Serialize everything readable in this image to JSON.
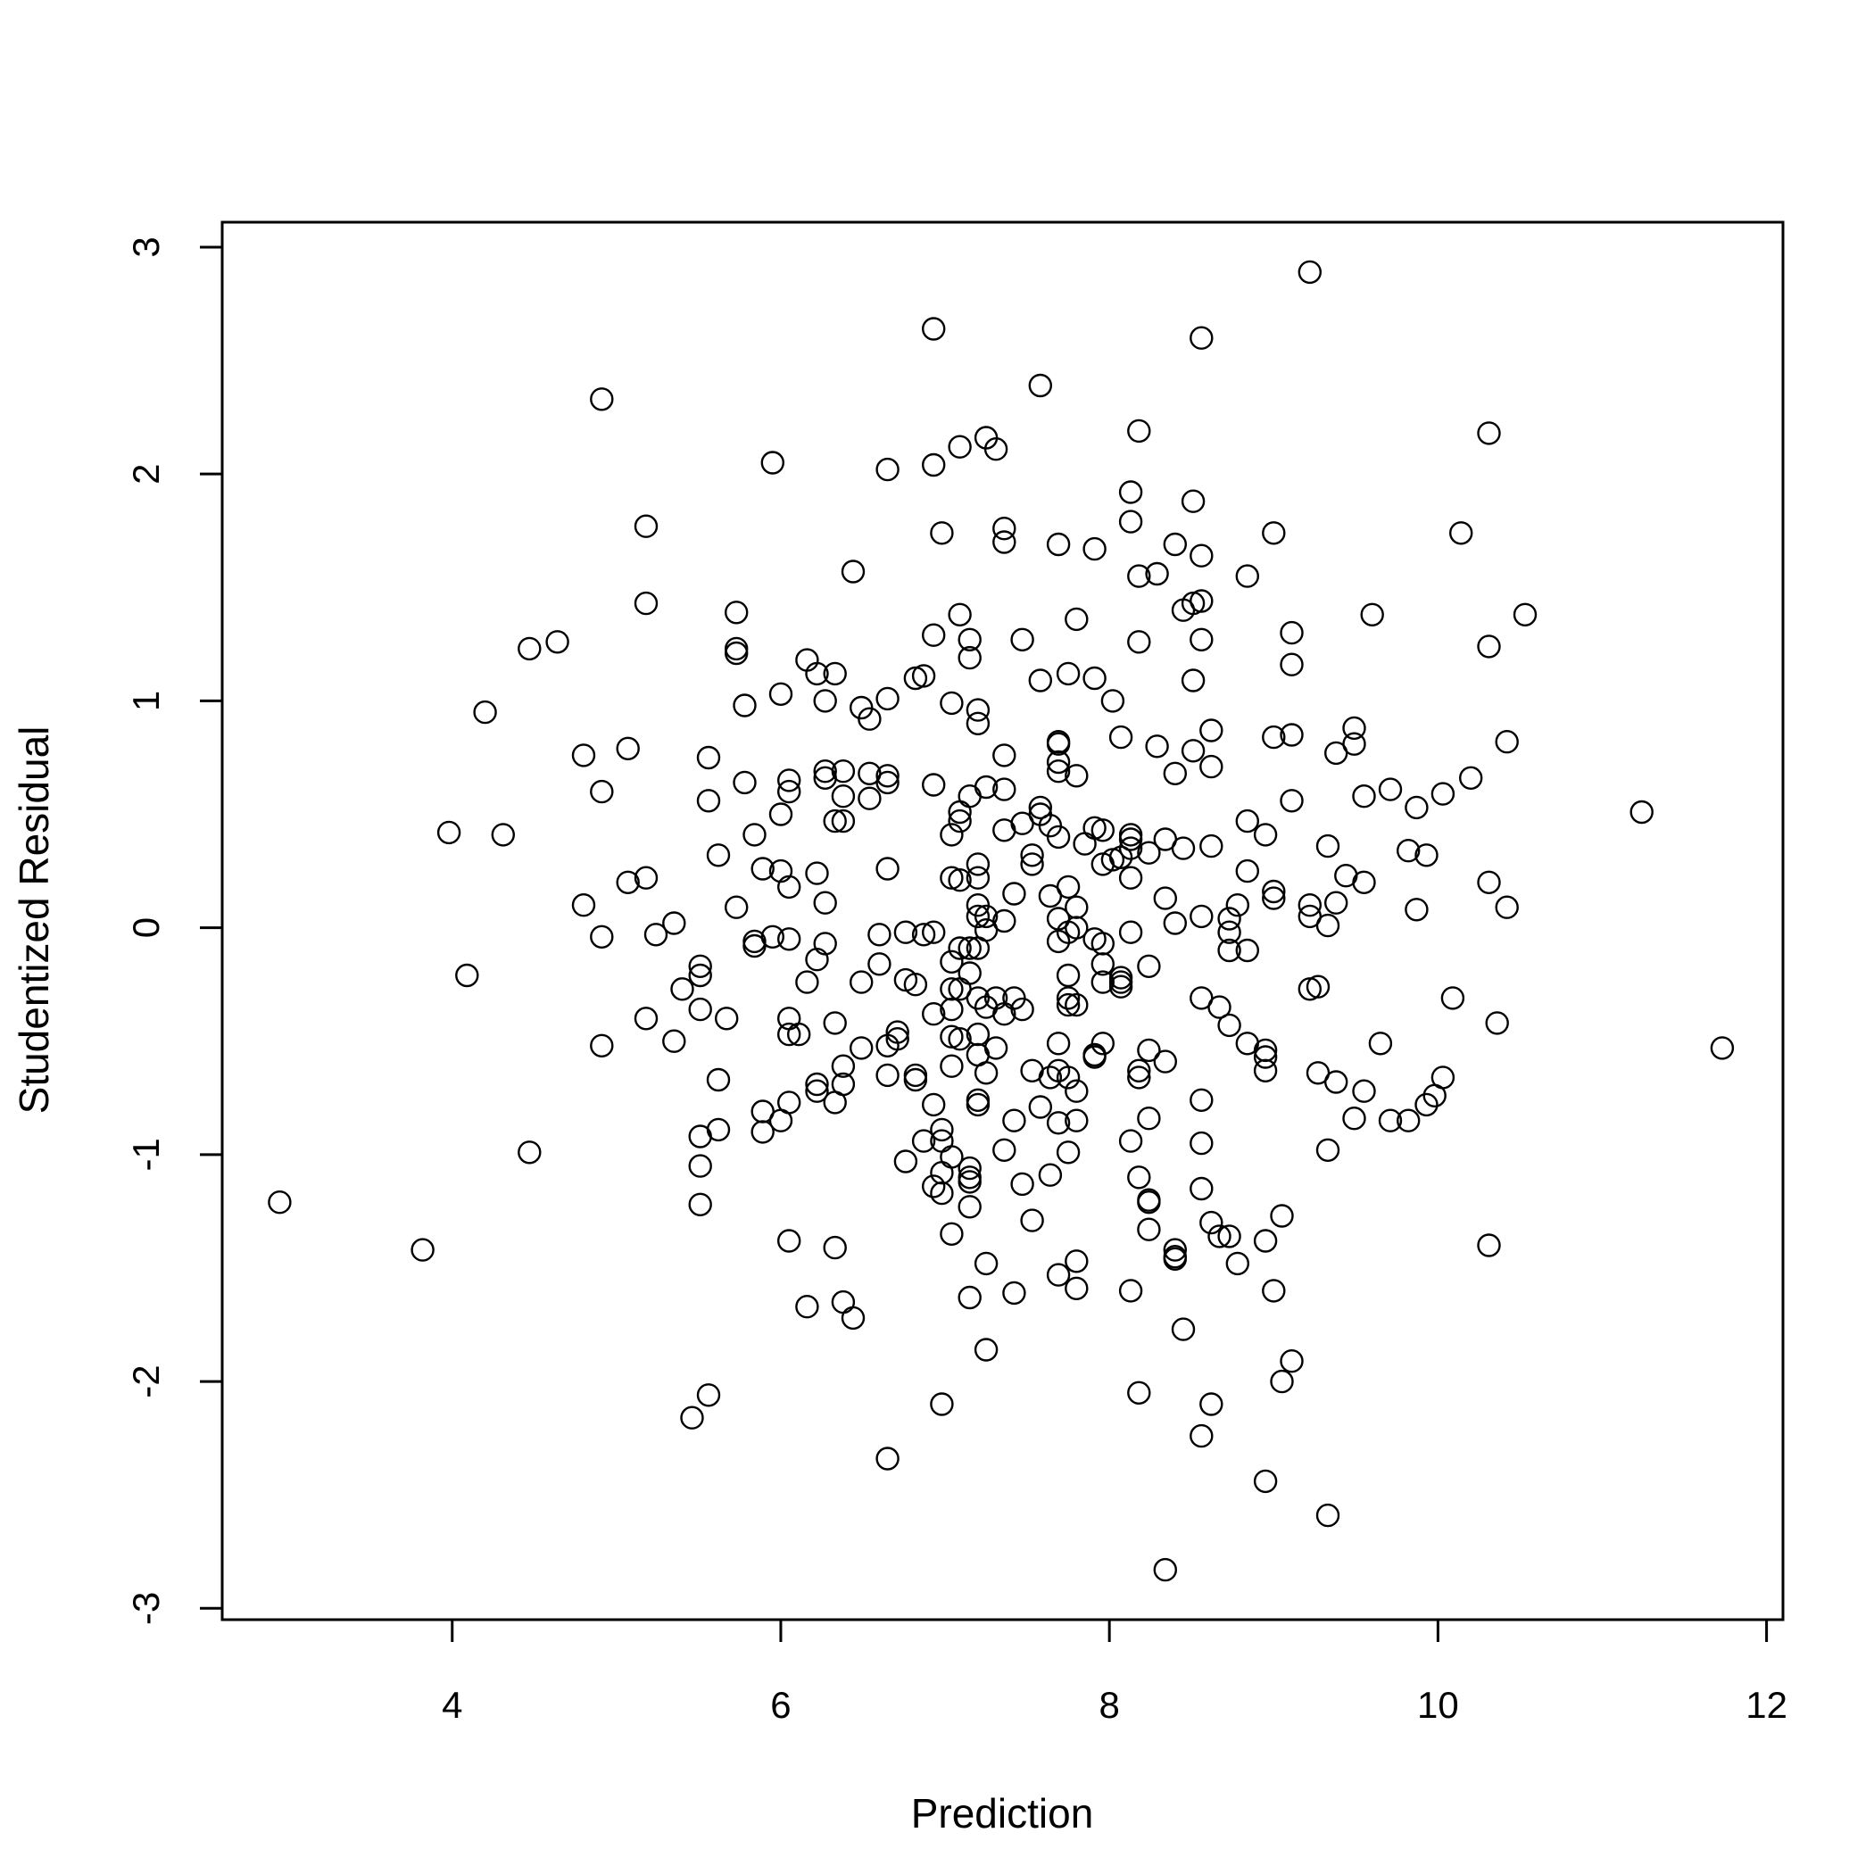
{
  "chart_data": {
    "type": "scatter",
    "title": "",
    "xlabel": "Prediction",
    "ylabel": "Studentized Residual",
    "xlim": [
      2.6,
      12.1
    ],
    "ylim": [
      -3.05,
      3.11
    ],
    "x_ticks": [
      4,
      6,
      8,
      10,
      12
    ],
    "y_ticks": [
      -3,
      -2,
      -1,
      0,
      1,
      2,
      3
    ],
    "grid": false,
    "legend": "none",
    "marker": "open-circle",
    "color": "#000000",
    "points": [
      [
        2.95,
        -1.21
      ],
      [
        3.82,
        -1.42
      ],
      [
        3.98,
        0.42
      ],
      [
        4.09,
        -0.21
      ],
      [
        4.2,
        0.95
      ],
      [
        4.31,
        0.41
      ],
      [
        4.47,
        1.23
      ],
      [
        4.47,
        -0.99
      ],
      [
        4.64,
        1.26
      ],
      [
        4.8,
        0.76
      ],
      [
        4.8,
        0.1
      ],
      [
        4.91,
        2.33
      ],
      [
        4.91,
        0.6
      ],
      [
        4.91,
        -0.04
      ],
      [
        4.91,
        -0.52
      ],
      [
        5.07,
        0.79
      ],
      [
        5.07,
        0.2
      ],
      [
        5.18,
        1.77
      ],
      [
        5.18,
        1.43
      ],
      [
        5.18,
        0.22
      ],
      [
        5.18,
        -0.4
      ],
      [
        5.24,
        -0.03
      ],
      [
        5.35,
        0.02
      ],
      [
        5.35,
        -0.5
      ],
      [
        5.4,
        -0.27
      ],
      [
        5.46,
        -2.16
      ],
      [
        5.51,
        -0.17
      ],
      [
        5.51,
        -0.21
      ],
      [
        5.51,
        -0.36
      ],
      [
        5.51,
        -0.92
      ],
      [
        5.51,
        -1.05
      ],
      [
        5.51,
        -1.22
      ],
      [
        5.56,
        0.75
      ],
      [
        5.56,
        0.56
      ],
      [
        5.56,
        -2.06
      ],
      [
        5.62,
        0.32
      ],
      [
        5.62,
        -0.67
      ],
      [
        5.62,
        -0.89
      ],
      [
        5.67,
        -0.4
      ],
      [
        5.73,
        1.39
      ],
      [
        5.73,
        1.23
      ],
      [
        5.73,
        1.21
      ],
      [
        5.73,
        0.09
      ],
      [
        5.78,
        0.98
      ],
      [
        5.78,
        0.64
      ],
      [
        5.84,
        0.41
      ],
      [
        5.84,
        -0.06
      ],
      [
        5.84,
        -0.08
      ],
      [
        5.89,
        0.26
      ],
      [
        5.89,
        -0.81
      ],
      [
        5.89,
        -0.9
      ],
      [
        5.95,
        2.05
      ],
      [
        5.95,
        -0.04
      ],
      [
        6,
        1.03
      ],
      [
        6,
        0.5
      ],
      [
        6,
        0.25
      ],
      [
        6,
        -0.85
      ],
      [
        6.05,
        0.65
      ],
      [
        6.05,
        0.6
      ],
      [
        6.05,
        0.18
      ],
      [
        6.05,
        -0.05
      ],
      [
        6.05,
        -0.4
      ],
      [
        6.05,
        -0.47
      ],
      [
        6.05,
        -0.77
      ],
      [
        6.05,
        -1.38
      ],
      [
        6.11,
        -0.47
      ],
      [
        6.16,
        1.18
      ],
      [
        6.16,
        -0.24
      ],
      [
        6.16,
        -1.67
      ],
      [
        6.22,
        1.12
      ],
      [
        6.22,
        0.24
      ],
      [
        6.22,
        -0.14
      ],
      [
        6.22,
        -0.69
      ],
      [
        6.22,
        -0.72
      ],
      [
        6.27,
        1.0
      ],
      [
        6.27,
        0.69
      ],
      [
        6.27,
        0.66
      ],
      [
        6.27,
        0.11
      ],
      [
        6.27,
        -0.07
      ],
      [
        6.33,
        1.12
      ],
      [
        6.33,
        0.47
      ],
      [
        6.33,
        -0.42
      ],
      [
        6.33,
        -0.77
      ],
      [
        6.33,
        -1.41
      ],
      [
        6.38,
        0.69
      ],
      [
        6.38,
        0.58
      ],
      [
        6.38,
        0.47
      ],
      [
        6.38,
        -0.61
      ],
      [
        6.38,
        -0.69
      ],
      [
        6.38,
        -1.65
      ],
      [
        6.44,
        1.57
      ],
      [
        6.44,
        -1.72
      ],
      [
        6.49,
        0.97
      ],
      [
        6.49,
        -0.24
      ],
      [
        6.49,
        -0.53
      ],
      [
        6.54,
        0.92
      ],
      [
        6.54,
        0.68
      ],
      [
        6.54,
        0.57
      ],
      [
        6.6,
        -0.03
      ],
      [
        6.6,
        -0.16
      ],
      [
        6.65,
        2.02
      ],
      [
        6.65,
        1.01
      ],
      [
        6.65,
        0.67
      ],
      [
        6.65,
        0.64
      ],
      [
        6.65,
        0.26
      ],
      [
        6.65,
        -0.52
      ],
      [
        6.65,
        -0.65
      ],
      [
        6.65,
        -2.34
      ],
      [
        6.71,
        -0.46
      ],
      [
        6.71,
        -0.49
      ],
      [
        6.76,
        -0.02
      ],
      [
        6.76,
        -0.23
      ],
      [
        6.76,
        -1.03
      ],
      [
        6.82,
        1.1
      ],
      [
        6.82,
        -0.25
      ],
      [
        6.82,
        -0.65
      ],
      [
        6.82,
        -0.67
      ],
      [
        6.87,
        1.11
      ],
      [
        6.87,
        -0.03
      ],
      [
        6.87,
        -0.94
      ],
      [
        6.93,
        2.64
      ],
      [
        6.93,
        2.04
      ],
      [
        6.93,
        1.29
      ],
      [
        6.93,
        0.63
      ],
      [
        6.93,
        -0.02
      ],
      [
        6.93,
        -0.38
      ],
      [
        6.93,
        -0.78
      ],
      [
        6.93,
        -1.14
      ],
      [
        6.98,
        1.74
      ],
      [
        6.98,
        -0.89
      ],
      [
        6.98,
        -0.94
      ],
      [
        6.98,
        -1.08
      ],
      [
        6.98,
        -1.17
      ],
      [
        6.98,
        -2.1
      ],
      [
        7.04,
        0.99
      ],
      [
        7.04,
        0.41
      ],
      [
        7.04,
        0.22
      ],
      [
        7.04,
        -0.15
      ],
      [
        7.04,
        -0.27
      ],
      [
        7.04,
        -0.36
      ],
      [
        7.04,
        -0.48
      ],
      [
        7.04,
        -0.61
      ],
      [
        7.04,
        -1.01
      ],
      [
        7.04,
        -1.35
      ],
      [
        7.09,
        2.12
      ],
      [
        7.09,
        1.38
      ],
      [
        7.09,
        0.51
      ],
      [
        7.09,
        0.47
      ],
      [
        7.09,
        0.21
      ],
      [
        7.09,
        -0.09
      ],
      [
        7.09,
        -0.27
      ],
      [
        7.09,
        -0.49
      ],
      [
        7.15,
        1.27
      ],
      [
        7.15,
        1.19
      ],
      [
        7.15,
        0.58
      ],
      [
        7.15,
        -0.09
      ],
      [
        7.15,
        -0.2
      ],
      [
        7.15,
        -1.06
      ],
      [
        7.15,
        -1.1
      ],
      [
        7.15,
        -1.12
      ],
      [
        7.15,
        -1.23
      ],
      [
        7.15,
        -1.63
      ],
      [
        7.2,
        0.96
      ],
      [
        7.2,
        0.9
      ],
      [
        7.2,
        0.28
      ],
      [
        7.2,
        0.22
      ],
      [
        7.2,
        0.1
      ],
      [
        7.2,
        0.05
      ],
      [
        7.2,
        -0.09
      ],
      [
        7.2,
        -0.31
      ],
      [
        7.2,
        -0.47
      ],
      [
        7.2,
        -0.56
      ],
      [
        7.2,
        -0.76
      ],
      [
        7.2,
        -0.78
      ],
      [
        7.25,
        2.16
      ],
      [
        7.25,
        0.62
      ],
      [
        7.25,
        0.05
      ],
      [
        7.25,
        -0.01
      ],
      [
        7.25,
        -0.35
      ],
      [
        7.25,
        -0.64
      ],
      [
        7.25,
        -1.48
      ],
      [
        7.25,
        -1.86
      ],
      [
        7.31,
        2.11
      ],
      [
        7.31,
        -0.31
      ],
      [
        7.31,
        -0.53
      ],
      [
        7.36,
        1.76
      ],
      [
        7.36,
        1.7
      ],
      [
        7.36,
        0.76
      ],
      [
        7.36,
        0.61
      ],
      [
        7.36,
        0.43
      ],
      [
        7.36,
        0.03
      ],
      [
        7.36,
        -0.38
      ],
      [
        7.36,
        -0.98
      ],
      [
        7.42,
        0.15
      ],
      [
        7.42,
        -0.31
      ],
      [
        7.42,
        -0.85
      ],
      [
        7.42,
        -1.61
      ],
      [
        7.47,
        1.27
      ],
      [
        7.47,
        0.46
      ],
      [
        7.47,
        -0.36
      ],
      [
        7.47,
        -1.13
      ],
      [
        7.53,
        0.32
      ],
      [
        7.53,
        0.28
      ],
      [
        7.53,
        -0.63
      ],
      [
        7.53,
        -1.29
      ],
      [
        7.58,
        2.39
      ],
      [
        7.58,
        1.09
      ],
      [
        7.58,
        0.53
      ],
      [
        7.58,
        0.5
      ],
      [
        7.58,
        -0.79
      ],
      [
        7.64,
        0.45
      ],
      [
        7.64,
        0.14
      ],
      [
        7.64,
        -0.66
      ],
      [
        7.64,
        -1.09
      ],
      [
        7.69,
        1.69
      ],
      [
        7.69,
        0.82
      ],
      [
        7.69,
        0.81
      ],
      [
        7.69,
        0.73
      ],
      [
        7.69,
        0.69
      ],
      [
        7.69,
        0.4
      ],
      [
        7.69,
        0.04
      ],
      [
        7.69,
        -0.06
      ],
      [
        7.69,
        -0.51
      ],
      [
        7.69,
        -0.63
      ],
      [
        7.69,
        -0.86
      ],
      [
        7.69,
        -1.53
      ],
      [
        7.75,
        1.12
      ],
      [
        7.75,
        0.18
      ],
      [
        7.75,
        -0.02
      ],
      [
        7.75,
        -0.21
      ],
      [
        7.75,
        -0.31
      ],
      [
        7.75,
        -0.34
      ],
      [
        7.75,
        -0.66
      ],
      [
        7.75,
        -0.99
      ],
      [
        7.8,
        1.36
      ],
      [
        7.8,
        0.67
      ],
      [
        7.8,
        0.09
      ],
      [
        7.8,
        0.0
      ],
      [
        7.8,
        -0.34
      ],
      [
        7.8,
        -0.72
      ],
      [
        7.8,
        -0.85
      ],
      [
        7.8,
        -1.47
      ],
      [
        7.8,
        -1.59
      ],
      [
        7.85,
        0.37
      ],
      [
        7.91,
        1.67
      ],
      [
        7.91,
        1.1
      ],
      [
        7.91,
        0.44
      ],
      [
        7.91,
        -0.05
      ],
      [
        7.91,
        -0.56
      ],
      [
        7.91,
        -0.57
      ],
      [
        7.96,
        0.43
      ],
      [
        7.96,
        0.28
      ],
      [
        7.96,
        -0.07
      ],
      [
        7.96,
        -0.16
      ],
      [
        7.96,
        -0.24
      ],
      [
        7.96,
        -0.51
      ],
      [
        8.02,
        1.0
      ],
      [
        8.02,
        0.3
      ],
      [
        8.07,
        0.84
      ],
      [
        8.07,
        0.31
      ],
      [
        8.07,
        -0.22
      ],
      [
        8.07,
        -0.24
      ],
      [
        8.07,
        -0.26
      ],
      [
        8.13,
        1.92
      ],
      [
        8.13,
        1.79
      ],
      [
        8.13,
        0.41
      ],
      [
        8.13,
        0.39
      ],
      [
        8.13,
        0.35
      ],
      [
        8.13,
        0.22
      ],
      [
        8.13,
        -0.02
      ],
      [
        8.13,
        -0.94
      ],
      [
        8.13,
        -1.6
      ],
      [
        8.18,
        2.19
      ],
      [
        8.18,
        1.55
      ],
      [
        8.18,
        1.26
      ],
      [
        8.18,
        -0.63
      ],
      [
        8.18,
        -0.66
      ],
      [
        8.18,
        -1.1
      ],
      [
        8.18,
        -2.05
      ],
      [
        8.24,
        0.33
      ],
      [
        8.24,
        -0.17
      ],
      [
        8.24,
        -0.54
      ],
      [
        8.24,
        -0.84
      ],
      [
        8.24,
        -1.2
      ],
      [
        8.24,
        -1.21
      ],
      [
        8.24,
        -1.33
      ],
      [
        8.29,
        1.56
      ],
      [
        8.29,
        0.8
      ],
      [
        8.34,
        0.39
      ],
      [
        8.34,
        0.13
      ],
      [
        8.34,
        -0.59
      ],
      [
        8.34,
        -2.83
      ],
      [
        8.4,
        1.69
      ],
      [
        8.4,
        0.68
      ],
      [
        8.4,
        0.02
      ],
      [
        8.4,
        -1.42
      ],
      [
        8.4,
        -1.45
      ],
      [
        8.4,
        -1.46
      ],
      [
        8.45,
        1.4
      ],
      [
        8.45,
        0.35
      ],
      [
        8.45,
        -1.77
      ],
      [
        8.51,
        1.88
      ],
      [
        8.51,
        1.43
      ],
      [
        8.51,
        1.09
      ],
      [
        8.51,
        0.78
      ],
      [
        8.56,
        2.6
      ],
      [
        8.56,
        1.64
      ],
      [
        8.56,
        1.44
      ],
      [
        8.56,
        1.27
      ],
      [
        8.56,
        0.05
      ],
      [
        8.56,
        -0.31
      ],
      [
        8.56,
        -0.76
      ],
      [
        8.56,
        -0.95
      ],
      [
        8.56,
        -1.15
      ],
      [
        8.56,
        -2.24
      ],
      [
        8.62,
        0.87
      ],
      [
        8.62,
        0.71
      ],
      [
        8.62,
        0.36
      ],
      [
        8.62,
        -1.3
      ],
      [
        8.62,
        -2.1
      ],
      [
        8.67,
        -0.35
      ],
      [
        8.67,
        -1.36
      ],
      [
        8.73,
        0.04
      ],
      [
        8.73,
        -0.02
      ],
      [
        8.73,
        -0.1
      ],
      [
        8.73,
        -0.43
      ],
      [
        8.73,
        -1.36
      ],
      [
        8.78,
        0.1
      ],
      [
        8.78,
        -1.48
      ],
      [
        8.84,
        1.55
      ],
      [
        8.84,
        0.47
      ],
      [
        8.84,
        0.25
      ],
      [
        8.84,
        -0.1
      ],
      [
        8.84,
        -0.51
      ],
      [
        8.95,
        0.41
      ],
      [
        8.95,
        -0.54
      ],
      [
        8.95,
        -0.57
      ],
      [
        8.95,
        -0.63
      ],
      [
        8.95,
        -1.38
      ],
      [
        8.95,
        -2.44
      ],
      [
        9,
        1.74
      ],
      [
        9,
        0.84
      ],
      [
        9,
        0.16
      ],
      [
        9,
        0.13
      ],
      [
        9,
        -1.6
      ],
      [
        9.05,
        -1.27
      ],
      [
        9.05,
        -2.0
      ],
      [
        9.11,
        1.3
      ],
      [
        9.11,
        1.16
      ],
      [
        9.11,
        0.85
      ],
      [
        9.11,
        0.56
      ],
      [
        9.11,
        -1.91
      ],
      [
        9.22,
        2.89
      ],
      [
        9.22,
        0.1
      ],
      [
        9.22,
        0.05
      ],
      [
        9.22,
        -0.27
      ],
      [
        9.27,
        -0.26
      ],
      [
        9.27,
        -0.64
      ],
      [
        9.33,
        0.36
      ],
      [
        9.33,
        0.01
      ],
      [
        9.33,
        -0.98
      ],
      [
        9.33,
        -2.59
      ],
      [
        9.38,
        0.77
      ],
      [
        9.38,
        0.11
      ],
      [
        9.38,
        -0.68
      ],
      [
        9.44,
        0.23
      ],
      [
        9.49,
        0.88
      ],
      [
        9.49,
        0.81
      ],
      [
        9.49,
        -0.84
      ],
      [
        9.55,
        0.58
      ],
      [
        9.55,
        0.2
      ],
      [
        9.55,
        -0.72
      ],
      [
        9.6,
        1.38
      ],
      [
        9.65,
        -0.51
      ],
      [
        9.71,
        0.61
      ],
      [
        9.71,
        -0.85
      ],
      [
        9.82,
        0.34
      ],
      [
        9.82,
        -0.85
      ],
      [
        9.87,
        0.53
      ],
      [
        9.87,
        0.08
      ],
      [
        9.93,
        0.32
      ],
      [
        9.93,
        -0.78
      ],
      [
        9.98,
        -0.74
      ],
      [
        10.03,
        0.59
      ],
      [
        10.03,
        -0.66
      ],
      [
        10.09,
        -0.31
      ],
      [
        10.14,
        1.74
      ],
      [
        10.2,
        0.66
      ],
      [
        10.31,
        2.18
      ],
      [
        10.31,
        1.24
      ],
      [
        10.31,
        0.2
      ],
      [
        10.31,
        -1.4
      ],
      [
        10.36,
        -0.42
      ],
      [
        10.42,
        0.82
      ],
      [
        10.42,
        0.09
      ],
      [
        10.53,
        1.38
      ],
      [
        11.24,
        0.51
      ],
      [
        11.73,
        -0.53
      ]
    ]
  }
}
